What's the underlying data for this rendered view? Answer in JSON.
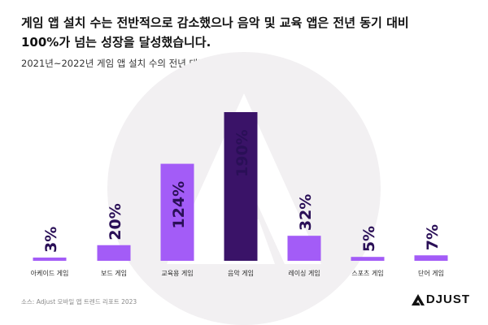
{
  "header": {
    "headline_line1": "게임 앱 설치 수는 전반적으로 감소했으나 음악 및 교육 앱은 전년 동기 대비",
    "headline_line2": "100%가 넘는 성장을 달성했습니다.",
    "subtitle": "2021년~2022년 게임 앱 설치 수의 전년 대비 증가율 (글로벌)"
  },
  "footer": {
    "source": "소스: Adjust 모바일 앱 트렌드 리포트 2023",
    "logo_text": "DJUST"
  },
  "colors": {
    "bar_default": "#a35cf7",
    "bar_highlight": "#3a1368",
    "watermark": "#f2f0f2",
    "label_text": "#2b2b2b"
  },
  "chart_data": {
    "type": "bar",
    "title": "2021년~2022년 게임 앱 설치 수의 전년 대비 증가율 (글로벌)",
    "categories": [
      "아케이드 게임",
      "보드 게임",
      "교육용 게임",
      "음악 게임",
      "레이싱 게임",
      "스포츠 게임",
      "단어 게임"
    ],
    "values": [
      3,
      20,
      124,
      190,
      32,
      5,
      7
    ],
    "value_labels": [
      "3%",
      "20%",
      "124%",
      "190%",
      "32%",
      "5%",
      "7%"
    ],
    "highlight_index": 3,
    "unit": "%",
    "ylim": [
      0,
      190
    ],
    "grid": false,
    "legend": "none"
  }
}
